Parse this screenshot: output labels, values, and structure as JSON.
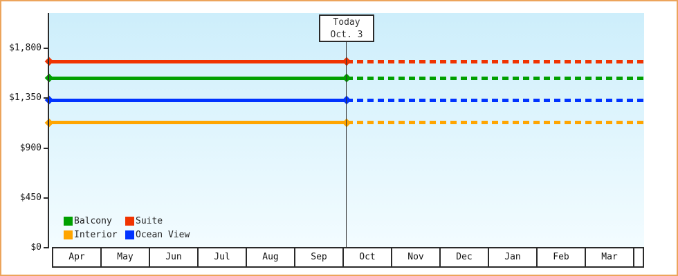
{
  "frame": {
    "border_color": "#eca45b",
    "background": "#ffffff"
  },
  "today_box": {
    "line1": "Today",
    "line2": "Oct. 3"
  },
  "y_axis": {
    "tick_labels": [
      "$1,800",
      "$1,350",
      "$900",
      "$450",
      "$0"
    ],
    "tick_values": [
      1800,
      1350,
      900,
      450,
      0
    ]
  },
  "x_axis": {
    "months": [
      "Apr",
      "May",
      "Jun",
      "Jul",
      "Aug",
      "Sep",
      "Oct",
      "Nov",
      "Dec",
      "Jan",
      "Feb",
      "Mar"
    ]
  },
  "legend": {
    "items": [
      {
        "label": "Balcony",
        "color": "#00a000"
      },
      {
        "label": "Suite",
        "color": "#f03300"
      },
      {
        "label": "Interior",
        "color": "#ffa500"
      },
      {
        "label": "Ocean View",
        "color": "#0033ff"
      }
    ]
  },
  "chart_data": {
    "type": "line",
    "title": "",
    "xlabel": "",
    "ylabel": "",
    "x_categories": [
      "Apr",
      "May",
      "Jun",
      "Jul",
      "Aug",
      "Sep",
      "Oct",
      "Nov",
      "Dec",
      "Jan",
      "Feb",
      "Mar"
    ],
    "y_ticks": [
      0,
      450,
      900,
      1350,
      1800
    ],
    "ylim": [
      0,
      2115
    ],
    "grid": false,
    "legend_position": "bottom-left",
    "plot_background_gradient": [
      "#cdeefb",
      "#f3fcff"
    ],
    "today": {
      "label": "Today",
      "date": "Oct. 3",
      "marker": "vertical-line"
    },
    "series": [
      {
        "name": "Suite",
        "color": "#f03300",
        "value": 1680,
        "style_before_today": "solid",
        "style_after_today": "dotted",
        "markers_at": [
          "Apr 1",
          "Oct. 3"
        ]
      },
      {
        "name": "Balcony",
        "color": "#00a000",
        "value": 1530,
        "style_before_today": "solid",
        "style_after_today": "dotted",
        "markers_at": [
          "Apr 1",
          "Oct. 3"
        ]
      },
      {
        "name": "Ocean View",
        "color": "#0033ff",
        "value": 1330,
        "style_before_today": "solid",
        "style_after_today": "dotted",
        "markers_at": [
          "Apr 1",
          "Oct. 3"
        ]
      },
      {
        "name": "Interior",
        "color": "#ffa500",
        "value": 1130,
        "style_before_today": "solid",
        "style_after_today": "dotted",
        "markers_at": [
          "Apr 1",
          "Oct. 3"
        ]
      }
    ]
  }
}
